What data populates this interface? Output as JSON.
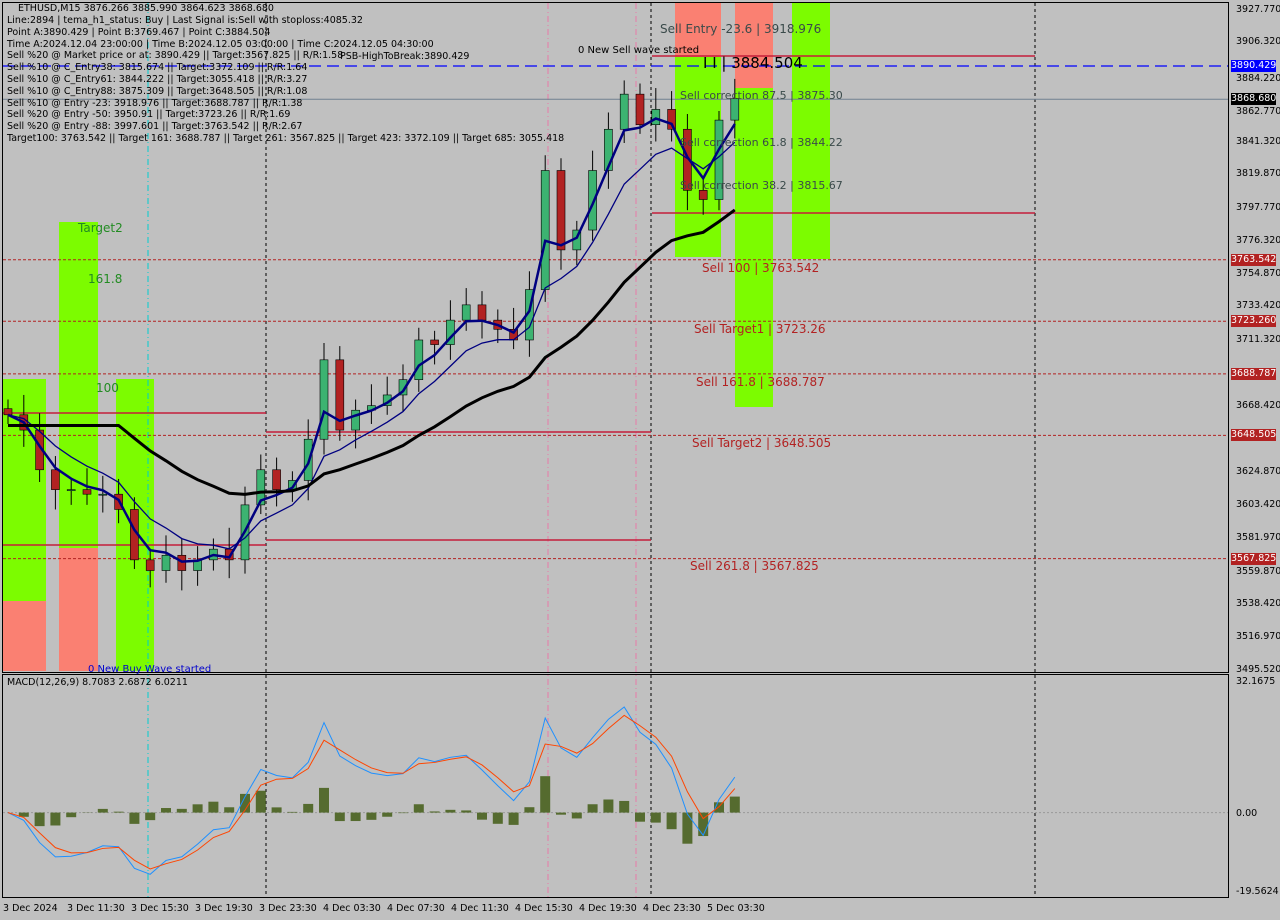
{
  "header": {
    "symbol_line": "ETHUSD,M15  3876.266 3885.990 3864.623 3868.680",
    "lines": [
      "Line:2894 | tema_h1_status: Buy | Last Signal is:Sell with stoploss:4085.32",
      "Point A:3890.429 | Point B:3769.467 | Point C:3884.504",
      "Time A:2024.12.04 23:00:00 | Time B:2024.12.05 03:00:00 | Time C:2024.12.05 04:30:00",
      "Sell %20 @ Market price or at: 3890.429 || Target:3567.825 || R/R:1.58",
      "Sell %10 @ C_Entry38: 3815.674 || Target:3372.109 || R/R:1.64",
      "Sell %10 @ C_Entry61: 3844.222 || Target:3055.418 || R/R:3.27",
      "Sell %10 @ C_Entry88: 3875.309 || Target:3648.505 || R/R:1.08",
      "Sell %10 @ Entry -23: 3918.976 || Target:3688.787 || R/R:1.38",
      "Sell %20 @ Entry -50: 3950.91 || Target:3723.26 || R/R:1.69",
      "Sell %20 @ Entry -88: 3997.601 || Target:3763.542 || R/R:2.67",
      "Target100: 3763.542 || Target 161: 3688.787 || Target 261: 3567.825 || Target 423: 3372.109 || Target 685: 3055.418"
    ],
    "overlap_text": "PSB-HighToBreak:3890.429"
  },
  "annotations": {
    "target2": "Target2",
    "fib161": "161.8",
    "fib100": "100",
    "buy_wave": "0 New Buy Wave started",
    "sell_wave": "0 New Sell wave started",
    "sell_entry": "Sell Entry -23.6 | 3918.976",
    "point_c": "I I | 3884.504",
    "corr875": "Sell correction 87.5 | 3875.30",
    "corr618": "Sell correction 61.8 | 3844.22",
    "corr382": "Sell correction 38.2 | 3815.67",
    "sell100": "Sell 100 | 3763.542",
    "target1": "Sell Target1 | 3723.26",
    "sell1618": "Sell 161.8 | 3688.787",
    "target2s": "Sell Target2 | 3648.505",
    "sell2618": "Sell 261.8 | 3567.825"
  },
  "macd": {
    "label": "MACD(12,26,9) 8.7083 2.6872 6.0211",
    "ticks": [
      "32.1675",
      "0.00",
      "-19.5624"
    ],
    "range": [
      -19.5624,
      32.1675
    ]
  },
  "colors": {
    "bull": "#3cb371",
    "bear": "#b22222",
    "green_zone": "#7cfc00",
    "red_zone": "#fa8072",
    "level": "#c41e3a",
    "blue_line": "#0000ff",
    "ma": "#000080"
  },
  "chart_data": {
    "type": "candlestick",
    "symbol": "ETHUSD",
    "timeframe": "M15",
    "ylim": [
      3495.52,
      3927.77
    ],
    "y_ticks": [
      "3927.770",
      "3906.320",
      "3884.220",
      "3862.770",
      "3841.320",
      "3819.870",
      "3797.770",
      "3776.320",
      "3754.870",
      "3733.420",
      "3711.320",
      "3668.420",
      "3624.870",
      "3603.420",
      "3581.970",
      "3559.870",
      "3538.420",
      "3516.970",
      "3495.520"
    ],
    "price_tags": [
      {
        "value": "3890.429",
        "color": "#0000ff"
      },
      {
        "value": "3868.680",
        "color": "#000000"
      },
      {
        "value": "3763.542",
        "color": "#b22222"
      },
      {
        "value": "3723.260",
        "color": "#b22222"
      },
      {
        "value": "3688.787",
        "color": "#b22222"
      },
      {
        "value": "3648.505",
        "color": "#b22222"
      },
      {
        "value": "3567.825",
        "color": "#b22222"
      }
    ],
    "x_ticks": [
      "3 Dec 2024",
      "3 Dec 11:30",
      "3 Dec 15:30",
      "3 Dec 19:30",
      "3 Dec 23:30",
      "4 Dec 03:30",
      "4 Dec 07:30",
      "4 Dec 11:30",
      "4 Dec 15:30",
      "4 Dec 19:30",
      "4 Dec 23:30",
      "5 Dec 03:30"
    ],
    "hourly_close": [
      3662,
      3652,
      3626,
      3613,
      3613,
      3610,
      3610,
      3600,
      3567,
      3560,
      3570,
      3560,
      3567,
      3574,
      3567,
      3603,
      3626,
      3613,
      3619,
      3646,
      3698,
      3652,
      3665,
      3668,
      3675,
      3685,
      3711,
      3708,
      3724,
      3734,
      3724,
      3718,
      3711,
      3744,
      3822,
      3770,
      3783,
      3822,
      3849,
      3872,
      3852,
      3862,
      3849,
      3809,
      3803,
      3855,
      3869
    ],
    "levels": [
      3890.429,
      3868.68,
      3763.542,
      3723.26,
      3688.787,
      3648.505,
      3567.825
    ]
  }
}
